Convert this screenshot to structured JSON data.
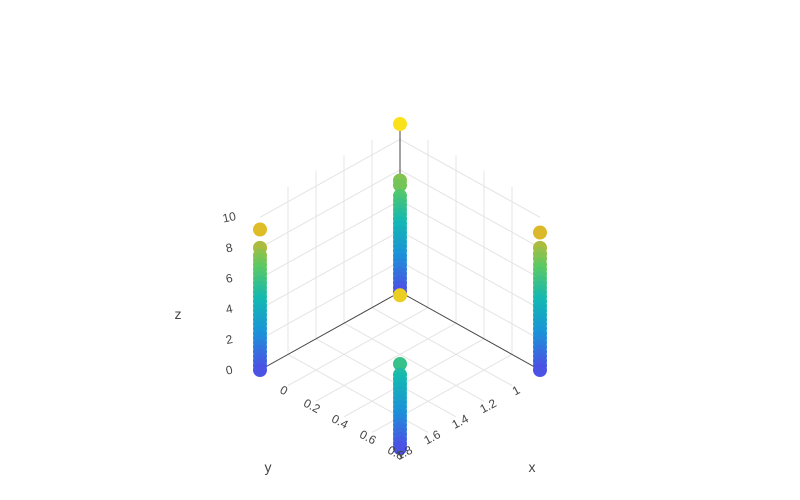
{
  "chart_data": {
    "type": "scatter3d",
    "axes": {
      "x": {
        "label": "x",
        "range": [
          0,
          1
        ],
        "ticks": [
          "0",
          "0.2",
          "0.4",
          "0.6",
          "0.8"
        ]
      },
      "y": {
        "label": "y",
        "range": [
          1,
          2
        ],
        "ticks": [
          "1",
          "1.2",
          "1.4",
          "1.6",
          "1.8"
        ]
      },
      "z": {
        "label": "z",
        "range": [
          0,
          11
        ],
        "ticks": [
          "0",
          "2",
          "4",
          "6",
          "8",
          "10"
        ]
      }
    },
    "grid": true,
    "colorscale": [
      "#4a53e4",
      "#1b92d8",
      "#12b8b3",
      "#5dc962",
      "#d8b52c",
      "#f9e21c"
    ],
    "marker_color_by": "z",
    "columns": [
      {
        "x": 0,
        "y": 1,
        "z": [
          0,
          0.3,
          0.6,
          0.9,
          1.2,
          1.5,
          1.8,
          2.1,
          2.4,
          2.7,
          3.0,
          3.3,
          3.6,
          3.9,
          4.2,
          4.5,
          4.8,
          5.1,
          5.4,
          5.7,
          6.0,
          6.3,
          7.0,
          7.3,
          11.0
        ]
      },
      {
        "x": 0,
        "y": 2,
        "z": [
          0,
          0.3,
          0.6,
          0.9,
          1.2,
          1.5,
          1.8,
          2.1,
          2.4,
          2.7,
          3.0,
          3.3,
          3.6,
          3.9,
          4.2,
          4.5,
          4.8,
          5.1,
          5.4,
          5.7,
          6.0,
          6.3,
          6.6,
          6.9,
          7.2,
          7.5,
          8.0,
          9.2
        ]
      },
      {
        "x": 1,
        "y": 1,
        "z": [
          0,
          0.3,
          0.6,
          0.9,
          1.2,
          1.5,
          1.8,
          2.1,
          2.4,
          2.7,
          3.0,
          3.3,
          3.6,
          3.9,
          4.2,
          4.5,
          4.8,
          5.1,
          5.4,
          5.7,
          6.0,
          6.3,
          6.6,
          6.9,
          7.3,
          7.6,
          8.0,
          9.0
        ]
      },
      {
        "x": 1,
        "y": 2,
        "z": [
          0,
          0.3,
          0.6,
          0.9,
          1.2,
          1.5,
          1.8,
          2.1,
          2.4,
          2.7,
          3.0,
          3.3,
          3.6,
          3.9,
          4.2,
          4.5,
          4.8,
          5.5,
          10.0
        ]
      }
    ]
  }
}
